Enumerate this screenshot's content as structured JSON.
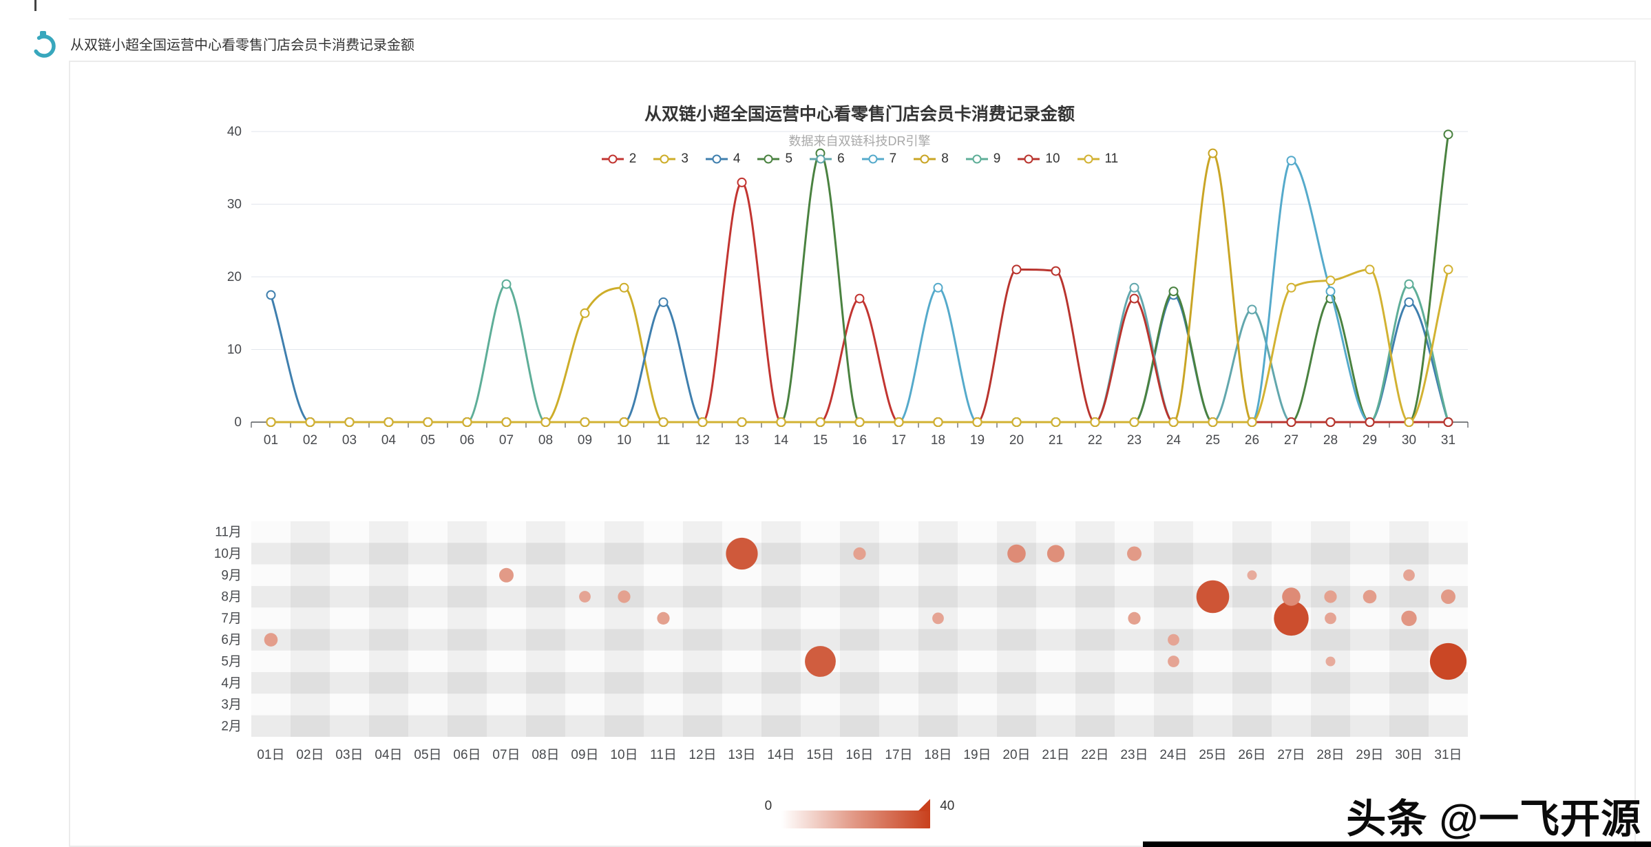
{
  "page": {
    "top_title": "从双链小超全国运营中心看零售门店会员卡消费记录金额",
    "watermark": "头条 @一飞开源"
  },
  "visual_map": {
    "min_label": "0",
    "max_label": "40",
    "min": 0,
    "max": 40,
    "low_color": "#ffffff",
    "high_color": "#c8401d",
    "orient": "horizontal",
    "position": "bottom-center"
  },
  "chart_data": [
    {
      "type": "line",
      "title": "从双链小超全国运营中心看零售门店会员卡消费记录金额",
      "subtitle": "数据来自双链科技DR引擎",
      "xlabel": "",
      "ylabel": "",
      "ylim": [
        0,
        40
      ],
      "yticks": [
        0,
        10,
        20,
        30,
        40
      ],
      "grid": true,
      "smooth": true,
      "legend_position": "top-center",
      "x": [
        "01",
        "02",
        "03",
        "04",
        "05",
        "06",
        "07",
        "08",
        "09",
        "10",
        "11",
        "12",
        "13",
        "14",
        "15",
        "16",
        "17",
        "18",
        "19",
        "20",
        "21",
        "22",
        "23",
        "24",
        "25",
        "26",
        "27",
        "28",
        "29",
        "30",
        "31"
      ],
      "series": [
        {
          "name": "2",
          "color": "#c23531",
          "values": [
            0,
            0,
            0,
            0,
            0,
            0,
            0,
            0,
            0,
            0,
            0,
            0,
            33,
            0,
            0,
            17,
            0,
            0,
            0,
            0,
            0,
            0,
            0,
            0,
            0,
            0,
            0,
            0,
            0,
            0,
            0
          ]
        },
        {
          "name": "3",
          "color": "#cdad29",
          "values": [
            0,
            0,
            0,
            0,
            0,
            0,
            0,
            0,
            15,
            18.5,
            0,
            0,
            0,
            0,
            0,
            0,
            0,
            0,
            0,
            0,
            0,
            0,
            0,
            0,
            0,
            0,
            0,
            0,
            0,
            0,
            0
          ]
        },
        {
          "name": "4",
          "color": "#3f7fae",
          "values": [
            17.5,
            0,
            0,
            0,
            0,
            0,
            0,
            0,
            0,
            0,
            16.5,
            0,
            0,
            0,
            0,
            0,
            0,
            0,
            0,
            0,
            0,
            0,
            0,
            17.5,
            0,
            0,
            0,
            0,
            0,
            16.5,
            0
          ]
        },
        {
          "name": "5",
          "color": "#4a8240",
          "values": [
            0,
            0,
            0,
            0,
            0,
            0,
            0,
            0,
            0,
            0,
            0,
            0,
            0,
            0,
            37,
            0,
            0,
            0,
            0,
            0,
            0,
            0,
            0,
            18,
            0,
            0,
            0,
            17,
            0,
            0,
            39.6
          ]
        },
        {
          "name": "6",
          "color": "#62a7ad",
          "values": [
            0,
            0,
            0,
            0,
            0,
            0,
            0,
            0,
            0,
            0,
            0,
            0,
            0,
            0,
            0,
            0,
            0,
            0,
            0,
            0,
            0,
            0,
            18.5,
            0,
            0,
            15.5,
            0,
            0,
            0,
            0,
            0
          ]
        },
        {
          "name": "7",
          "color": "#55aacb",
          "values": [
            0,
            0,
            0,
            0,
            0,
            0,
            0,
            0,
            0,
            0,
            0,
            0,
            0,
            0,
            0,
            0,
            0,
            18.5,
            0,
            0,
            0,
            0,
            0,
            0,
            0,
            0,
            36,
            18,
            0,
            0,
            0
          ]
        },
        {
          "name": "8",
          "color": "#c9a525",
          "values": [
            0,
            0,
            0,
            0,
            0,
            0,
            0,
            0,
            0,
            0,
            0,
            0,
            0,
            0,
            0,
            0,
            0,
            0,
            0,
            0,
            0,
            0,
            0,
            0,
            37,
            0,
            0,
            0,
            0,
            0,
            0
          ]
        },
        {
          "name": "9",
          "color": "#5eae98",
          "values": [
            0,
            0,
            0,
            0,
            0,
            0,
            19,
            0,
            0,
            0,
            0,
            0,
            0,
            0,
            0,
            0,
            0,
            0,
            0,
            0,
            0,
            0,
            0,
            0,
            0,
            0,
            0,
            0,
            0,
            19,
            0
          ]
        },
        {
          "name": "10",
          "color": "#b9342e",
          "values": [
            0,
            0,
            0,
            0,
            0,
            0,
            0,
            0,
            0,
            0,
            0,
            0,
            0,
            0,
            0,
            0,
            0,
            0,
            0,
            21,
            20.8,
            0,
            17,
            0,
            0,
            0,
            0,
            0,
            0,
            0,
            0
          ]
        },
        {
          "name": "11",
          "color": "#d2b232",
          "values": [
            0,
            0,
            0,
            0,
            0,
            0,
            0,
            0,
            0,
            0,
            0,
            0,
            0,
            0,
            0,
            0,
            0,
            0,
            0,
            0,
            0,
            0,
            0,
            0,
            0,
            0,
            18.5,
            19.5,
            21,
            0,
            21
          ]
        }
      ]
    },
    {
      "type": "scatter",
      "title": "",
      "x": [
        "01日",
        "02日",
        "03日",
        "04日",
        "05日",
        "06日",
        "07日",
        "08日",
        "09日",
        "10日",
        "11日",
        "12日",
        "13日",
        "14日",
        "15日",
        "16日",
        "17日",
        "18日",
        "19日",
        "20日",
        "21日",
        "22日",
        "23日",
        "24日",
        "25日",
        "26日",
        "27日",
        "28日",
        "29日",
        "30日",
        "31日"
      ],
      "y": [
        "2月",
        "3月",
        "4月",
        "5月",
        "6月",
        "7月",
        "8月",
        "9月",
        "10月",
        "11月"
      ],
      "value_range": [
        0,
        40
      ],
      "split_area": "checkerboard",
      "points": [
        [
          "01日",
          "6月",
          14
        ],
        [
          "07日",
          "9月",
          15
        ],
        [
          "09日",
          "8月",
          12
        ],
        [
          "10日",
          "8月",
          13
        ],
        [
          "11日",
          "7月",
          13
        ],
        [
          "13日",
          "10月",
          33
        ],
        [
          "15日",
          "5月",
          32
        ],
        [
          "16日",
          "10月",
          13
        ],
        [
          "18日",
          "7月",
          12
        ],
        [
          "20日",
          "10月",
          19
        ],
        [
          "21日",
          "10月",
          18
        ],
        [
          "23日",
          "10月",
          15
        ],
        [
          "23日",
          "7月",
          13
        ],
        [
          "24日",
          "6月",
          12
        ],
        [
          "24日",
          "5月",
          12
        ],
        [
          "25日",
          "8月",
          34
        ],
        [
          "26日",
          "9月",
          10
        ],
        [
          "27日",
          "7月",
          36
        ],
        [
          "27日",
          "8月",
          19
        ],
        [
          "28日",
          "8月",
          13
        ],
        [
          "28日",
          "7月",
          12
        ],
        [
          "28日",
          "5月",
          10
        ],
        [
          "29日",
          "8月",
          14
        ],
        [
          "30日",
          "9月",
          12
        ],
        [
          "30日",
          "7月",
          16
        ],
        [
          "31日",
          "8月",
          15
        ],
        [
          "31日",
          "5月",
          38
        ]
      ]
    }
  ]
}
